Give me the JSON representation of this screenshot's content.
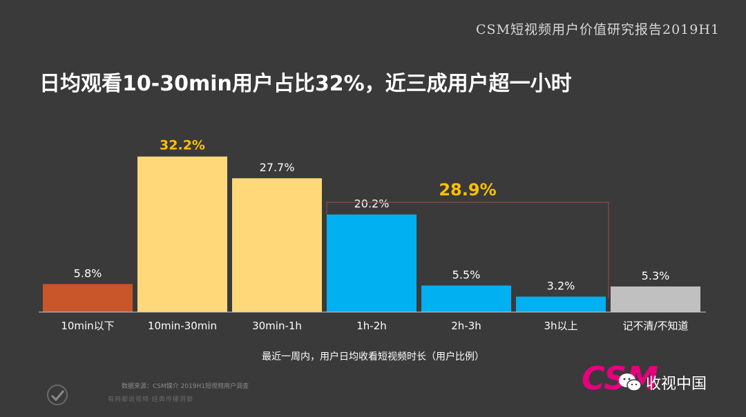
{
  "header": {
    "report_title": "CSM短视频用户价值研究报告2019H1",
    "headline": "日均观看10-30min用户占比32%，近三成用户超一小时"
  },
  "chart_data": {
    "type": "bar",
    "title": "",
    "xlabel": "最近一周内，用户日均收看短视频时长（用户比例）",
    "ylabel": "",
    "unit": "%",
    "ylim": [
      0,
      40
    ],
    "grid": false,
    "legend": "none",
    "categories": [
      "10min以下",
      "10min-30min",
      "30min-1h",
      "1h-2h",
      "2h-3h",
      "3h以上",
      "记不清/不知道"
    ],
    "values": [
      5.8,
      32.2,
      27.7,
      20.2,
      5.5,
      3.2,
      5.3
    ],
    "labels": [
      "5.8%",
      "32.2%",
      "27.7%",
      "20.2%",
      "5.5%",
      "3.2%",
      "5.3%"
    ],
    "bar_colors": [
      "#c9552b",
      "#ffd87a",
      "#ffd87a",
      "#00b0f0",
      "#00b0f0",
      "#00b0f0",
      "#c0c0c0"
    ],
    "label_colors": [
      "#ffffff",
      "#ffc000",
      "#ffffff",
      "#ffffff",
      "#ffffff",
      "#ffffff",
      "#ffffff"
    ],
    "highlight_label_index": 1,
    "bracket": {
      "start_index": 3,
      "end_index": 5,
      "label": "28.9%",
      "color": "#ffc000",
      "line_color": "#8a4a45"
    }
  },
  "footer": {
    "source": "数据来源：CSM媒介 2019H1短视频用户调查",
    "sub_source": "有网都说视频·经典传播洞察",
    "logo_text": "CSM",
    "logo_color": "#e6007e",
    "wechat_name": "收视中国"
  }
}
